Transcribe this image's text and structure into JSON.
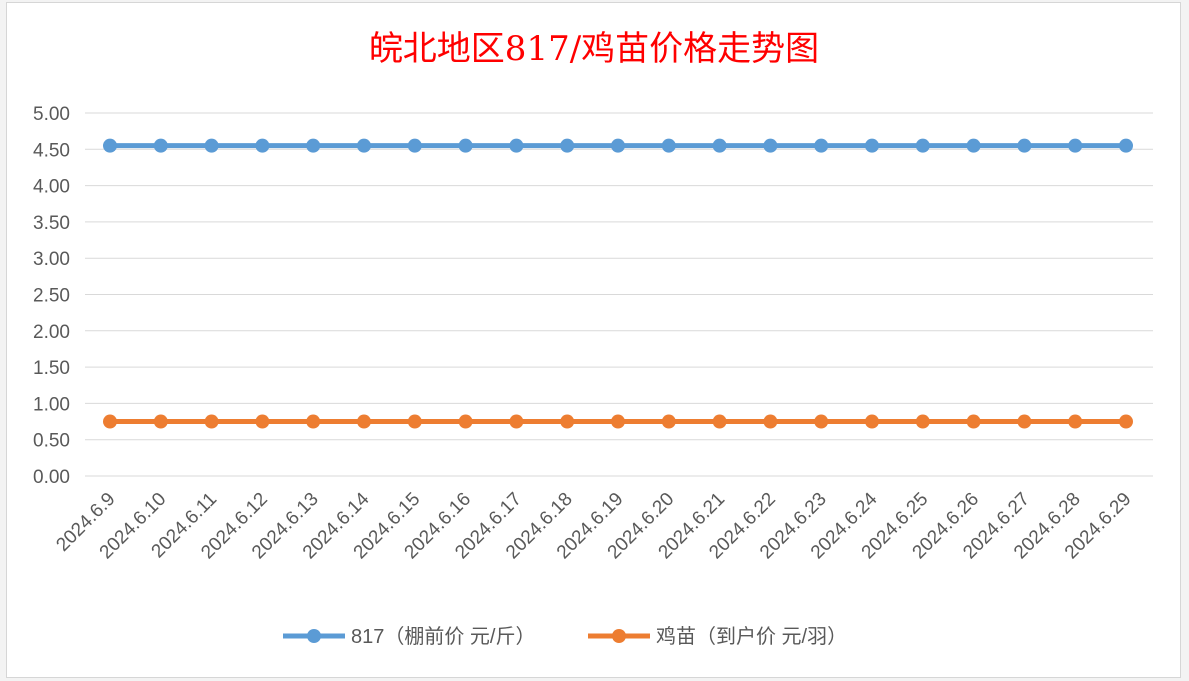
{
  "chart_data": {
    "type": "line",
    "title": "皖北地区817/鸡苗价格走势图",
    "title_color": "#ff0000",
    "categories": [
      "2024.6.9",
      "2024.6.10",
      "2024.6.11",
      "2024.6.12",
      "2024.6.13",
      "2024.6.14",
      "2024.6.15",
      "2024.6.16",
      "2024.6.17",
      "2024.6.18",
      "2024.6.19",
      "2024.6.20",
      "2024.6.21",
      "2024.6.22",
      "2024.6.23",
      "2024.6.24",
      "2024.6.25",
      "2024.6.26",
      "2024.6.27",
      "2024.6.28",
      "2024.6.29"
    ],
    "y_ticks": [
      "5.00",
      "4.50",
      "4.00",
      "3.50",
      "3.00",
      "2.50",
      "2.00",
      "1.50",
      "1.00",
      "0.50",
      "0.00"
    ],
    "ylim": [
      0,
      5
    ],
    "grid": true,
    "legend_position": "bottom",
    "series": [
      {
        "name": "817（棚前价 元/斤）",
        "color": "#5b9bd5",
        "values": [
          4.55,
          4.55,
          4.55,
          4.55,
          4.55,
          4.55,
          4.55,
          4.55,
          4.55,
          4.55,
          4.55,
          4.55,
          4.55,
          4.55,
          4.55,
          4.55,
          4.55,
          4.55,
          4.55,
          4.55,
          4.55
        ]
      },
      {
        "name": "鸡苗（到户价 元/羽）",
        "color": "#ed7d31",
        "values": [
          0.75,
          0.75,
          0.75,
          0.75,
          0.75,
          0.75,
          0.75,
          0.75,
          0.75,
          0.75,
          0.75,
          0.75,
          0.75,
          0.75,
          0.75,
          0.75,
          0.75,
          0.75,
          0.75,
          0.75,
          0.75
        ]
      }
    ]
  }
}
